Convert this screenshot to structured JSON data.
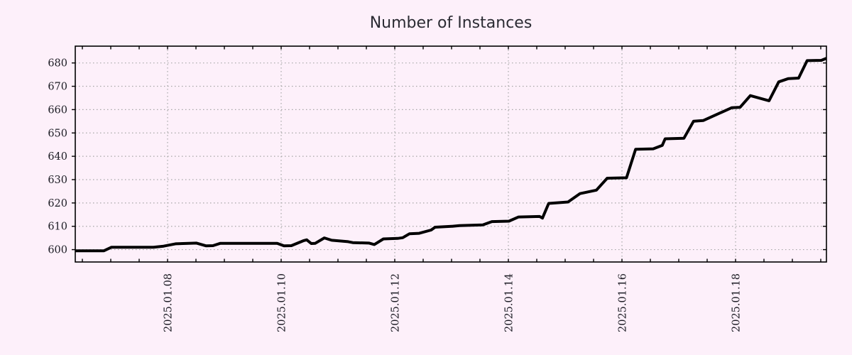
{
  "title": "Number of Instances",
  "colors": {
    "background": "#fdf0fa",
    "line": "#000000",
    "grid": "#a6a6a6",
    "frame": "#000000",
    "title_text": "#2b2b33",
    "tick_text": "#1c1c24"
  },
  "chart_data": {
    "type": "line",
    "title": "Number of Instances",
    "xlabel": "",
    "ylabel": "",
    "legend": "none",
    "grid": "dotted",
    "x_unit": "day of January 2025 (fractional)",
    "x_range": [
      6.375,
      19.6
    ],
    "y_range_visible": [
      594.7,
      687.2
    ],
    "y_ticks": [
      600,
      610,
      620,
      630,
      640,
      650,
      660,
      670,
      680
    ],
    "x_major_ticks": [
      {
        "day": 8,
        "label": "2025.01.08"
      },
      {
        "day": 10,
        "label": "2025.01.10"
      },
      {
        "day": 12,
        "label": "2025.01.12"
      },
      {
        "day": 14,
        "label": "2025.01.14"
      },
      {
        "day": 16,
        "label": "2025.01.16"
      },
      {
        "day": 18,
        "label": "2025.01.18"
      }
    ],
    "x_minor_tick_step_days": 0.5,
    "series": [
      {
        "name": "instances",
        "color": "#000000",
        "points": [
          [
            6.375,
            599.5
          ],
          [
            6.88,
            599.5
          ],
          [
            7.01,
            601.0
          ],
          [
            7.75,
            601.0
          ],
          [
            7.93,
            601.5
          ],
          [
            8.14,
            602.5
          ],
          [
            8.51,
            602.8
          ],
          [
            8.68,
            601.6
          ],
          [
            8.8,
            601.7
          ],
          [
            8.93,
            602.7
          ],
          [
            9.93,
            602.7
          ],
          [
            10.05,
            601.6
          ],
          [
            10.18,
            601.7
          ],
          [
            10.39,
            603.8
          ],
          [
            10.45,
            604.2
          ],
          [
            10.53,
            602.6
          ],
          [
            10.6,
            602.7
          ],
          [
            10.76,
            605.0
          ],
          [
            10.89,
            604.0
          ],
          [
            11.18,
            603.4
          ],
          [
            11.26,
            603.0
          ],
          [
            11.55,
            602.8
          ],
          [
            11.64,
            602.2
          ],
          [
            11.8,
            604.6
          ],
          [
            12.05,
            604.8
          ],
          [
            12.14,
            605.1
          ],
          [
            12.26,
            606.8
          ],
          [
            12.43,
            607.0
          ],
          [
            12.64,
            608.4
          ],
          [
            12.71,
            609.6
          ],
          [
            13.01,
            610.0
          ],
          [
            13.14,
            610.3
          ],
          [
            13.55,
            610.6
          ],
          [
            13.71,
            612.0
          ],
          [
            14.01,
            612.2
          ],
          [
            14.18,
            614.0
          ],
          [
            14.55,
            614.2
          ],
          [
            14.6,
            613.5
          ],
          [
            14.71,
            619.8
          ],
          [
            15.05,
            620.4
          ],
          [
            15.26,
            624.0
          ],
          [
            15.55,
            625.5
          ],
          [
            15.74,
            630.6
          ],
          [
            16.08,
            630.8
          ],
          [
            16.24,
            643.0
          ],
          [
            16.55,
            643.2
          ],
          [
            16.71,
            644.7
          ],
          [
            16.76,
            647.5
          ],
          [
            17.09,
            647.7
          ],
          [
            17.26,
            655.0
          ],
          [
            17.43,
            655.3
          ],
          [
            17.93,
            660.8
          ],
          [
            18.08,
            661.0
          ],
          [
            18.26,
            666.0
          ],
          [
            18.59,
            663.8
          ],
          [
            18.76,
            671.9
          ],
          [
            18.93,
            673.3
          ],
          [
            19.11,
            673.5
          ],
          [
            19.26,
            681.0
          ],
          [
            19.51,
            681.1
          ],
          [
            19.6,
            682.0
          ]
        ]
      }
    ]
  }
}
